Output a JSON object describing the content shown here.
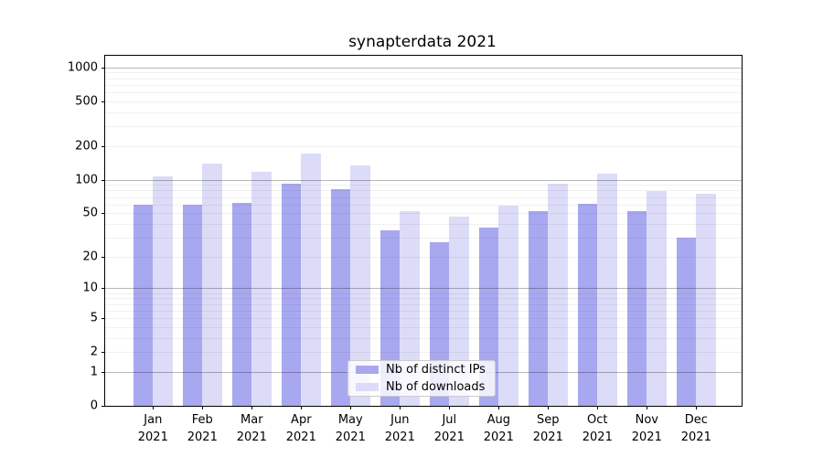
{
  "title": "synapterdata 2021",
  "colors": {
    "ips_bar": "#a8a8f0",
    "downloads_bar": "#dcdcf8",
    "grid_major": "rgba(0,0,0,0.28)",
    "grid_minor": "rgba(0,0,0,0.055)",
    "axis": "#000000"
  },
  "legend": {
    "items": [
      {
        "label": "Nb of distinct IPs",
        "color": "#a8a8f0"
      },
      {
        "label": "Nb of downloads",
        "color": "#dcdcf8"
      }
    ]
  },
  "chart_data": {
    "type": "bar",
    "title": "synapterdata 2021",
    "categories": [
      "Jan 2021",
      "Feb 2021",
      "Mar 2021",
      "Apr 2021",
      "May 2021",
      "Jun 2021",
      "Jul 2021",
      "Aug 2021",
      "Sep 2021",
      "Oct 2021",
      "Nov 2021",
      "Dec 2021"
    ],
    "x_tick_months": [
      "Jan",
      "Feb",
      "Mar",
      "Apr",
      "May",
      "Jun",
      "Jul",
      "Aug",
      "Sep",
      "Oct",
      "Nov",
      "Dec"
    ],
    "x_tick_year": "2021",
    "series": [
      {
        "name": "Nb of distinct IPs",
        "color": "#a8a8f0",
        "values": [
          60,
          60,
          62,
          93,
          83,
          35,
          27,
          37,
          52,
          61,
          52,
          30
        ]
      },
      {
        "name": "Nb of downloads",
        "color": "#dcdcf8",
        "values": [
          108,
          140,
          117,
          170,
          134,
          52,
          47,
          59,
          92,
          113,
          79,
          75
        ]
      }
    ],
    "ylabel": "",
    "xlabel": "",
    "yscale": "log1p",
    "yticks": [
      0,
      1,
      2,
      5,
      10,
      20,
      50,
      100,
      200,
      500,
      1000
    ],
    "major_grid_values": [
      1,
      10,
      100,
      1000
    ],
    "ylim": [
      0,
      1270
    ],
    "grid": "horizontal",
    "legend_position": "lower center"
  }
}
